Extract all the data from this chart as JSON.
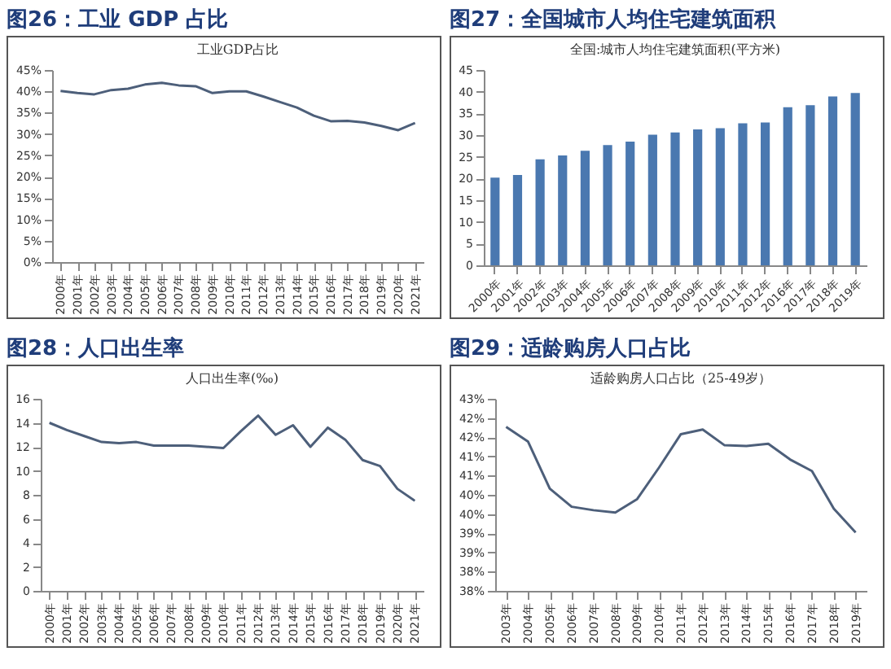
{
  "chart_data": [
    {
      "type": "line",
      "title": "图26：工业 GDP 占比",
      "subtitle": "工业GDP占比",
      "color": "#4d5f7a",
      "categories": [
        "2000年",
        "2001年",
        "2002年",
        "2003年",
        "2004年",
        "2005年",
        "2006年",
        "2007年",
        "2008年",
        "2009年",
        "2010年",
        "2011年",
        "2012年",
        "2013年",
        "2014年",
        "2015年",
        "2016年",
        "2017年",
        "2018年",
        "2019年",
        "2020年",
        "2021年"
      ],
      "values": [
        40.1,
        39.6,
        39.3,
        40.3,
        40.6,
        41.6,
        42.0,
        41.4,
        41.2,
        39.6,
        40.0,
        40.0,
        38.8,
        37.5,
        36.2,
        34.3,
        33.0,
        33.1,
        32.7,
        31.9,
        30.9,
        32.6
      ],
      "ylim": [
        0,
        45
      ],
      "yticks": [
        {
          "value": 0,
          "label": "0%"
        },
        {
          "value": 5,
          "label": "5%"
        },
        {
          "value": 10,
          "label": "10%"
        },
        {
          "value": 15,
          "label": "15%"
        },
        {
          "value": 20,
          "label": "20%"
        },
        {
          "value": 25,
          "label": "25%"
        },
        {
          "value": 30,
          "label": "30%"
        },
        {
          "value": 35,
          "label": "35%"
        },
        {
          "value": 40,
          "label": "40%"
        },
        {
          "value": 45,
          "label": "45%"
        }
      ]
    },
    {
      "type": "bar",
      "title": "图27：全国城市人均住宅建筑面积",
      "subtitle": "全国:城市人均住宅建筑面积(平方米)",
      "color": "#4a78b0",
      "categories": [
        "2000年",
        "2001年",
        "2002年",
        "2003年",
        "2004年",
        "2005年",
        "2006年",
        "2007年",
        "2008年",
        "2009年",
        "2010年",
        "2011年",
        "2012年",
        "2016年",
        "2017年",
        "2018年",
        "2019年"
      ],
      "values": [
        20.2,
        20.8,
        24.4,
        25.3,
        26.4,
        27.7,
        28.5,
        30.1,
        30.6,
        31.3,
        31.6,
        32.7,
        32.9,
        36.4,
        36.9,
        38.9,
        39.7
      ],
      "ylim": [
        0,
        45
      ],
      "yticks": [
        0,
        5,
        10,
        15,
        20,
        25,
        30,
        35,
        40,
        45
      ]
    },
    {
      "type": "line",
      "title": "图28：人口出生率",
      "subtitle": "人口出生率(‰)",
      "color": "#4d5f7a",
      "categories": [
        "2000年",
        "2001年",
        "2002年",
        "2003年",
        "2004年",
        "2005年",
        "2006年",
        "2007年",
        "2008年",
        "2009年",
        "2010年",
        "2011年",
        "2012年",
        "2013年",
        "2014年",
        "2015年",
        "2016年",
        "2017年",
        "2018年",
        "2019年",
        "2020年",
        "2021年"
      ],
      "values": [
        14.0,
        13.4,
        12.9,
        12.4,
        12.3,
        12.4,
        12.1,
        12.1,
        12.1,
        12.0,
        11.9,
        13.3,
        14.6,
        13.0,
        13.8,
        12.0,
        13.6,
        12.6,
        10.9,
        10.4,
        8.5,
        7.5
      ],
      "ylim": [
        0,
        16
      ],
      "yticks": [
        0,
        2,
        4,
        6,
        8,
        10,
        12,
        14,
        16
      ]
    },
    {
      "type": "line",
      "title": "图29：适龄购房人口占比",
      "subtitle": "适龄购房人口占比（25-49岁）",
      "color": "#4d5f7a",
      "categories": [
        "2003年",
        "2004年",
        "2005年",
        "2006年",
        "2007年",
        "2008年",
        "2009年",
        "2010年",
        "2011年",
        "2012年",
        "2013年",
        "2014年",
        "2015年",
        "2016年",
        "2017年",
        "2018年",
        "2019年"
      ],
      "values": [
        42.27,
        41.89,
        40.66,
        40.19,
        40.1,
        40.04,
        40.39,
        41.21,
        42.08,
        42.2,
        41.79,
        41.77,
        41.83,
        41.42,
        41.12,
        40.14,
        39.52
      ],
      "ylim": [
        38,
        43
      ],
      "yticks": [
        {
          "value": 38,
          "label": "38%"
        },
        {
          "value": 38.5,
          "label": "38%"
        },
        {
          "value": 39,
          "label": "39%"
        },
        {
          "value": 39.5,
          "label": "39%"
        },
        {
          "value": 40,
          "label": "40%"
        },
        {
          "value": 40.5,
          "label": "40%"
        },
        {
          "value": 41,
          "label": "41%"
        },
        {
          "value": 41.5,
          "label": "41%"
        },
        {
          "value": 42,
          "label": "42%"
        },
        {
          "value": 42.5,
          "label": "42%"
        },
        {
          "value": 43,
          "label": "43%"
        }
      ]
    }
  ]
}
